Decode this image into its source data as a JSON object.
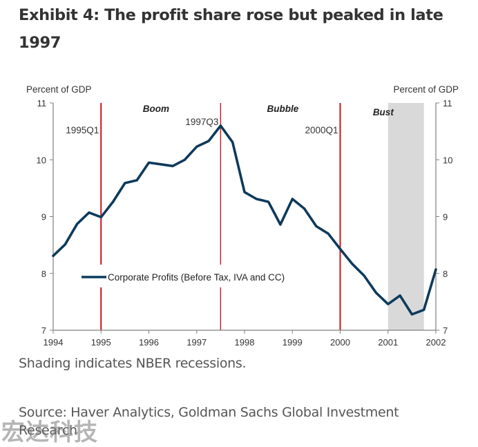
{
  "page": {
    "title": "Exhibit 4: The profit share rose but peaked in late 1997",
    "note": "Shading indicates NBER recessions.",
    "source": "Source: Haver Analytics, Goldman Sachs Global Investment Research",
    "watermark": "宏达科技"
  },
  "chart_data": {
    "type": "line",
    "title": "Exhibit 4: The profit share rose but peaked in late 1997",
    "xlabel": "",
    "ylabel": "Percent of GDP",
    "ylabel_right": "Percent of GDP",
    "xlim": [
      1994,
      2002
    ],
    "ylim": [
      7,
      11
    ],
    "grid": false,
    "x_ticks": [
      1994,
      1995,
      1996,
      1997,
      1998,
      1999,
      2000,
      2001,
      2002
    ],
    "x_tick_labels": [
      "1994",
      "1995",
      "1996",
      "1997",
      "1998",
      "1999",
      "2000",
      "2001",
      "2002"
    ],
    "y_ticks": [
      7,
      8,
      9,
      10,
      11
    ],
    "y_tick_labels": [
      "7",
      "8",
      "9",
      "10",
      "11"
    ],
    "legend": {
      "placement": "center-left",
      "entries": [
        "Corporate Profits (Before Tax, IVA and CC)"
      ]
    },
    "series": [
      {
        "name": "Corporate Profits (Before Tax, IVA and CC)",
        "color": "#0d3a5c",
        "x": [
          1994.0,
          1994.25,
          1994.5,
          1994.75,
          1995.0,
          1995.25,
          1995.5,
          1995.75,
          1996.0,
          1996.25,
          1996.5,
          1996.75,
          1997.0,
          1997.25,
          1997.5,
          1997.75,
          1998.0,
          1998.25,
          1998.5,
          1998.75,
          1999.0,
          1999.25,
          1999.5,
          1999.75,
          2000.0,
          2000.25,
          2000.5,
          2000.75,
          2001.0,
          2001.25,
          2001.5,
          2001.75,
          2002.0
        ],
        "values": [
          8.31,
          8.51,
          8.87,
          9.07,
          8.99,
          9.26,
          9.59,
          9.64,
          9.95,
          9.92,
          9.89,
          10.0,
          10.23,
          10.33,
          10.6,
          10.31,
          9.43,
          9.31,
          9.26,
          8.86,
          9.31,
          9.14,
          8.83,
          8.7,
          8.43,
          8.17,
          7.96,
          7.66,
          7.46,
          7.61,
          7.28,
          7.36,
          8.07
        ]
      }
    ],
    "vertical_markers": [
      {
        "x": 1995.0,
        "label": "1995Q1",
        "color": "#c8141e"
      },
      {
        "x": 1997.5,
        "label": "1997Q3",
        "color": "#c8141e"
      },
      {
        "x": 2000.0,
        "label": "2000Q1",
        "color": "#c8141e"
      }
    ],
    "phases": [
      {
        "label": "Boom",
        "x": 1996.15
      },
      {
        "label": "Bubble",
        "x": 1998.8
      },
      {
        "label": "Bust",
        "x": 2000.9
      }
    ],
    "recessions": [
      {
        "start": 2001.0,
        "end": 2001.75,
        "color": "#d9d9d9"
      }
    ]
  }
}
